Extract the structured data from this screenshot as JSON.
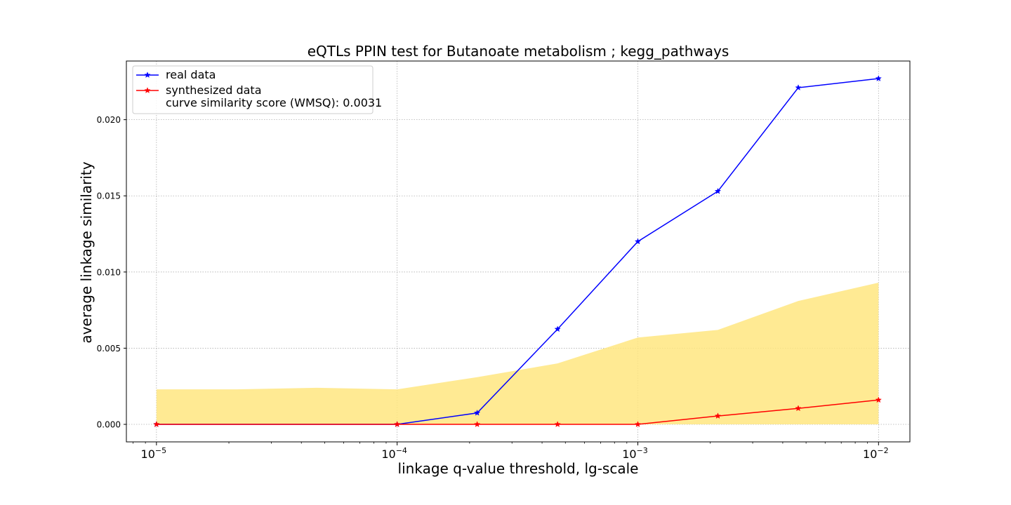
{
  "chart_data": {
    "type": "line",
    "title": "eQTLs PPIN test for Butanoate metabolism ; kegg_pathways",
    "xlabel": "linkage q-value threshold, lg-scale",
    "ylabel": "average linkage similarity",
    "x_scale": "log",
    "xlim": [
      7.5e-06,
      0.0135
    ],
    "ylim": [
      -0.00115,
      0.02385
    ],
    "grid": true,
    "legend_position": "top-left",
    "x_ticks": [
      {
        "value": 1e-05,
        "base": "10",
        "exp": "−5"
      },
      {
        "value": 0.0001,
        "base": "10",
        "exp": "−4"
      },
      {
        "value": 0.001,
        "base": "10",
        "exp": "−3"
      },
      {
        "value": 0.01,
        "base": "10",
        "exp": "−2"
      }
    ],
    "y_ticks": [
      {
        "value": 0.0,
        "label": "0.000"
      },
      {
        "value": 0.005,
        "label": "0.005"
      },
      {
        "value": 0.01,
        "label": "0.010"
      },
      {
        "value": 0.015,
        "label": "0.015"
      },
      {
        "value": 0.02,
        "label": "0.020"
      }
    ],
    "x": [
      1e-05,
      2.15e-05,
      4.64e-05,
      0.0001,
      0.000215,
      0.000464,
      0.001,
      0.00215,
      0.00464,
      0.01
    ],
    "series": [
      {
        "name": "real data",
        "color": "#0000ff",
        "marker": "star",
        "values": [
          0.0,
          0.0,
          0.0,
          0.0,
          0.00075,
          0.00625,
          0.012,
          0.0153,
          0.0221,
          0.0227
        ]
      },
      {
        "name": "synthesized data",
        "color": "#ff0000",
        "marker": "star",
        "values": [
          0.0,
          0.0,
          0.0,
          0.0,
          0.0,
          0.0,
          0.0,
          0.00055,
          0.00105,
          0.0016
        ]
      }
    ],
    "band": {
      "color": "#ffe680",
      "upper": [
        0.0023,
        0.0023,
        0.0024,
        0.0023,
        0.0031,
        0.004,
        0.0057,
        0.0062,
        0.0081,
        0.0093
      ],
      "lower": [
        0.0,
        0.0,
        0.0,
        0.0,
        0.0,
        0.0,
        0.0,
        0.0,
        0.0,
        0.0
      ]
    },
    "legend": {
      "entries": [
        {
          "label_lines": [
            "real data"
          ],
          "color": "#0000ff"
        },
        {
          "label_lines": [
            "synthesized data",
            "curve similarity score (WMSQ): 0.0031"
          ],
          "color": "#ff0000"
        }
      ]
    }
  }
}
